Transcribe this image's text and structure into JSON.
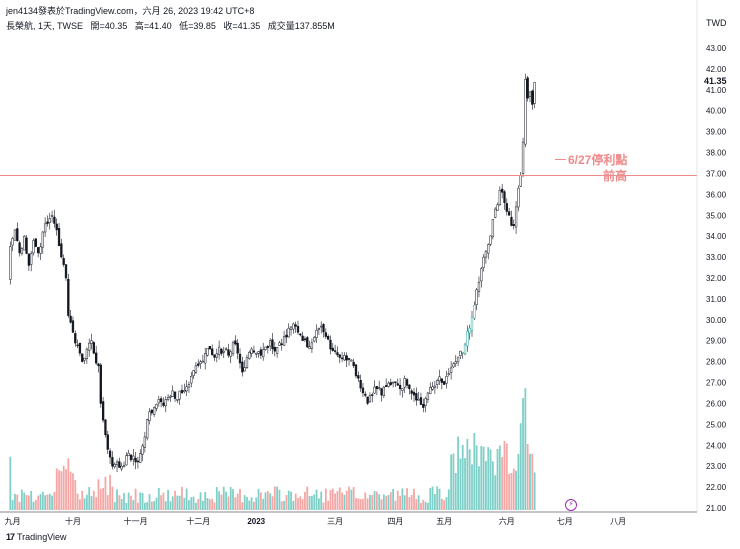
{
  "header": {
    "line1": "jen4134發表於TradingView.com，六月 26, 2023 19:42 UTC+8",
    "symbol": "長榮航, 1天, TWSE",
    "open": "開=40.35",
    "high": "高=41.40",
    "low": "低=39.85",
    "close": "收=41.35",
    "volume": "成交量137.855M"
  },
  "axis_unit": "TWD",
  "last_price_label": "41.35",
  "annotations": {
    "stop_profit": "6/27停利點",
    "prev_high": "前高"
  },
  "footer": {
    "logo": "17",
    "brand": "TradingView"
  },
  "colors": {
    "up": "#26a69a",
    "down": "#ef5350",
    "up_vol": "#7fcfc8",
    "down_vol": "#f4a7a5",
    "resistance": "#ef8a8a"
  },
  "chart_data": {
    "type": "candlestick",
    "price_axis": {
      "min": 21.0,
      "max": 43.0,
      "ticks": [
        "21.00",
        "22.00",
        "23.00",
        "24.00",
        "25.00",
        "26.00",
        "27.00",
        "28.00",
        "29.00",
        "30.00",
        "31.00",
        "32.00",
        "33.00",
        "34.00",
        "35.00",
        "36.00",
        "37.00",
        "38.00",
        "39.00",
        "40.00",
        "41.00",
        "42.00",
        "43.00"
      ]
    },
    "x_axis": {
      "labels": [
        {
          "text": "九月",
          "day": 2
        },
        {
          "text": "十月",
          "day": 28
        },
        {
          "text": "十一月",
          "day": 55
        },
        {
          "text": "十二月",
          "day": 82
        },
        {
          "text": "2023",
          "day": 107
        },
        {
          "text": "三月",
          "day": 141
        },
        {
          "text": "四月",
          "day": 167
        },
        {
          "text": "五月",
          "day": 188
        },
        {
          "text": "六月",
          "day": 215
        },
        {
          "text": "七月",
          "day": 240
        },
        {
          "text": "八月",
          "day": 263
        }
      ],
      "total_days": 292
    },
    "resistance_level": 36.9,
    "waypoints": [
      [
        0,
        32.0
      ],
      [
        1,
        33.5
      ],
      [
        3,
        34.3
      ],
      [
        5,
        33.2
      ],
      [
        7,
        34.0
      ],
      [
        9,
        32.6
      ],
      [
        11,
        33.8
      ],
      [
        13,
        33.2
      ],
      [
        15,
        34.2
      ],
      [
        17,
        34.6
      ],
      [
        19,
        35.0
      ],
      [
        21,
        34.3
      ],
      [
        23,
        33.0
      ],
      [
        25,
        32.0
      ],
      [
        26,
        30.2
      ],
      [
        28,
        29.4
      ],
      [
        30,
        28.8
      ],
      [
        32,
        28.0
      ],
      [
        34,
        28.6
      ],
      [
        36,
        29.0
      ],
      [
        37,
        28.4
      ],
      [
        39,
        27.8
      ],
      [
        40,
        26.0
      ],
      [
        41,
        25.2
      ],
      [
        42,
        24.5
      ],
      [
        43,
        23.8
      ],
      [
        45,
        23.0
      ],
      [
        47,
        23.2
      ],
      [
        49,
        23.0
      ],
      [
        51,
        23.5
      ],
      [
        53,
        23.3
      ],
      [
        55,
        23.2
      ],
      [
        57,
        23.6
      ],
      [
        59,
        24.4
      ],
      [
        61,
        25.6
      ],
      [
        63,
        25.8
      ],
      [
        65,
        26.2
      ],
      [
        67,
        25.9
      ],
      [
        69,
        26.3
      ],
      [
        71,
        26.6
      ],
      [
        73,
        26.2
      ],
      [
        75,
        26.5
      ],
      [
        77,
        26.8
      ],
      [
        79,
        27.3
      ],
      [
        81,
        27.8
      ],
      [
        83,
        28.0
      ],
      [
        85,
        28.4
      ],
      [
        87,
        28.6
      ],
      [
        89,
        28.2
      ],
      [
        91,
        28.7
      ],
      [
        93,
        28.5
      ],
      [
        95,
        28.3
      ],
      [
        97,
        28.9
      ],
      [
        99,
        28.4
      ],
      [
        101,
        27.5
      ],
      [
        103,
        28.2
      ],
      [
        105,
        28.6
      ],
      [
        107,
        28.4
      ],
      [
        109,
        28.3
      ],
      [
        111,
        28.7
      ],
      [
        113,
        29.0
      ],
      [
        115,
        28.5
      ],
      [
        117,
        28.9
      ],
      [
        119,
        29.2
      ],
      [
        121,
        29.6
      ],
      [
        123,
        29.8
      ],
      [
        125,
        29.4
      ],
      [
        127,
        29.0
      ],
      [
        129,
        28.7
      ],
      [
        131,
        28.9
      ],
      [
        133,
        29.5
      ],
      [
        135,
        29.7
      ],
      [
        137,
        29.2
      ],
      [
        139,
        28.6
      ],
      [
        141,
        28.5
      ],
      [
        143,
        28.2
      ],
      [
        145,
        28.3
      ],
      [
        147,
        28.1
      ],
      [
        149,
        27.8
      ],
      [
        151,
        27.2
      ],
      [
        153,
        26.5
      ],
      [
        155,
        26.0
      ],
      [
        157,
        26.4
      ],
      [
        159,
        26.7
      ],
      [
        161,
        26.4
      ],
      [
        163,
        26.8
      ],
      [
        165,
        26.9
      ],
      [
        167,
        27.0
      ],
      [
        169,
        26.7
      ],
      [
        171,
        27.2
      ],
      [
        173,
        26.7
      ],
      [
        175,
        26.4
      ],
      [
        177,
        26.2
      ],
      [
        179,
        25.8
      ],
      [
        181,
        26.5
      ],
      [
        183,
        26.8
      ],
      [
        185,
        27.1
      ],
      [
        187,
        27.0
      ],
      [
        189,
        27.3
      ],
      [
        191,
        27.7
      ],
      [
        193,
        28.0
      ],
      [
        195,
        28.5
      ],
      [
        197,
        28.8
      ],
      [
        199,
        29.6
      ],
      [
        201,
        30.7
      ],
      [
        203,
        31.8
      ],
      [
        205,
        33.0
      ],
      [
        207,
        33.6
      ],
      [
        209,
        34.8
      ],
      [
        211,
        35.5
      ],
      [
        212,
        36.2
      ],
      [
        214,
        35.6
      ],
      [
        216,
        35.0
      ],
      [
        218,
        34.5
      ],
      [
        219,
        35.4
      ],
      [
        220,
        36.3
      ],
      [
        221,
        36.9
      ],
      [
        222,
        38.5
      ],
      [
        223,
        41.5
      ],
      [
        224,
        40.6
      ],
      [
        225,
        40.9
      ],
      [
        226,
        40.3
      ],
      [
        227,
        41.35
      ]
    ],
    "volume_peak": 137.855
  }
}
